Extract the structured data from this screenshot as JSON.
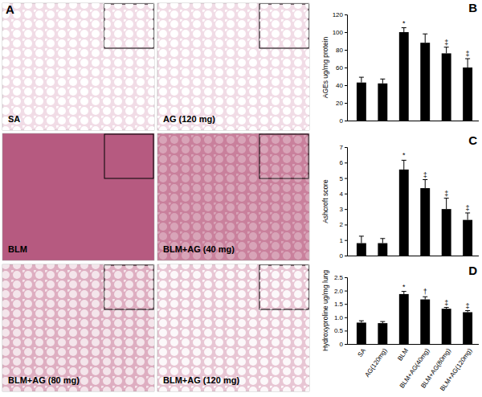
{
  "panel_a": {
    "label": "A",
    "images": [
      {
        "label": "SA",
        "color": "#f1dce6"
      },
      {
        "label": "AG (120 mg)",
        "color": "#f1dce6"
      },
      {
        "label": "BLM",
        "color": "#b65a80"
      },
      {
        "label": "BLM+AG (40 mg)",
        "color": "#c9809c"
      },
      {
        "label": "BLM+AG (80 mg)",
        "color": "#deaec1"
      },
      {
        "label": "BLM+AG (120 mg)",
        "color": "#e8c6d4"
      }
    ]
  },
  "chart_data": [
    {
      "type": "bar",
      "title": "B",
      "ylabel": "AGEs ug/mg protein",
      "categories": [
        null,
        null,
        null,
        null,
        null,
        null
      ],
      "values": [
        43,
        42,
        100,
        88,
        76,
        60
      ],
      "errors": [
        6,
        5,
        5,
        10,
        7,
        10
      ],
      "annotations": [
        null,
        null,
        "*",
        null,
        "‡",
        "‡"
      ],
      "color": "#000000",
      "ylim": [
        0,
        120
      ],
      "yticks": [
        0,
        20,
        40,
        60,
        80,
        100,
        120
      ]
    },
    {
      "type": "bar",
      "title": "C",
      "ylabel": "Ashcroft score",
      "categories": [
        null,
        null,
        null,
        null,
        null,
        null
      ],
      "values": [
        0.8,
        0.8,
        5.55,
        4.35,
        3.0,
        2.3
      ],
      "errors": [
        0.45,
        0.3,
        0.6,
        0.55,
        0.7,
        0.45
      ],
      "annotations": [
        null,
        null,
        "*",
        "‡",
        "‡",
        "‡"
      ],
      "color": "#000000",
      "ylim": [
        0,
        7
      ],
      "yticks": [
        0,
        1,
        2,
        3,
        4,
        5,
        6,
        7
      ]
    },
    {
      "type": "bar",
      "title": "D",
      "ylabel": "Hydroxyproline ug/mg lung",
      "categories": [
        "SA",
        "AG(120mg)",
        "BLM",
        "BLM+AG(40mg)",
        "BLM+AG(80mg)",
        "BLM+AG(120mg)"
      ],
      "values": [
        0.8,
        0.78,
        1.87,
        1.67,
        1.32,
        1.19
      ],
      "errors": [
        0.07,
        0.06,
        0.1,
        0.1,
        0.05,
        0.06
      ],
      "annotations": [
        null,
        null,
        "*",
        "†",
        "‡",
        "‡"
      ],
      "color": "#000000",
      "ylim": [
        0,
        2.5
      ],
      "yticks": [
        0,
        0.5,
        {
          "value": 1,
          "label": "1.0"
        },
        1.5,
        {
          "value": 2,
          "label": "2.0"
        },
        2.5
      ]
    }
  ]
}
